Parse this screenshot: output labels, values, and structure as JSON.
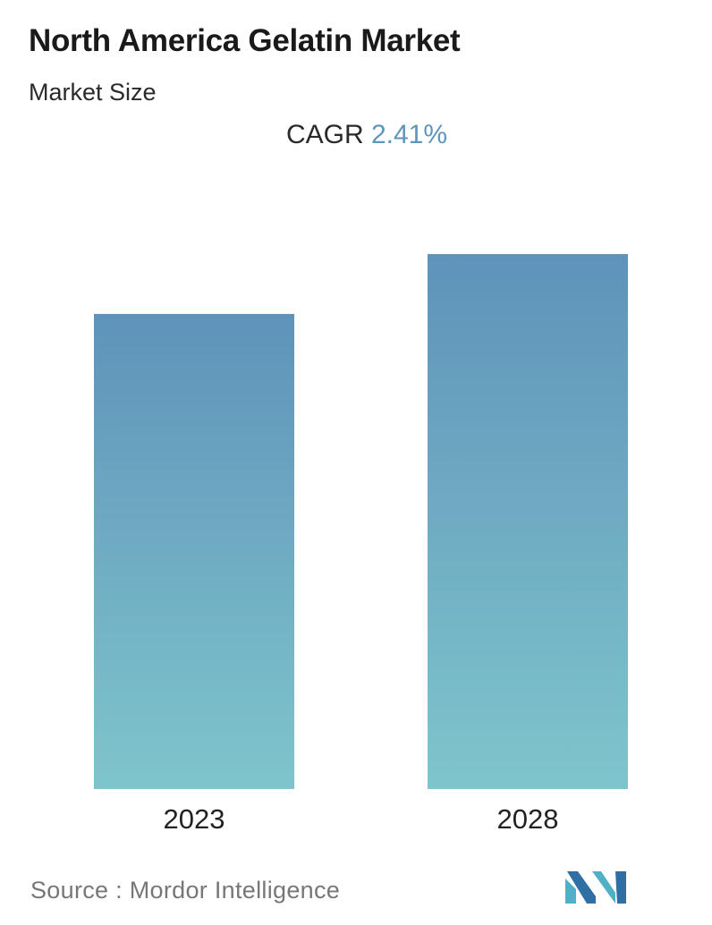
{
  "header": {
    "title": "North America Gelatin Market",
    "subtitle": "Market Size",
    "cagr_label": "CAGR",
    "cagr_value": "2.41%"
  },
  "chart_data": {
    "type": "bar",
    "categories": [
      "2023",
      "2028"
    ],
    "values": [
      1.0,
      1.126
    ],
    "value_note": "relative bar heights (no y-axis shown)",
    "grid": false,
    "legend": "none",
    "colors": {
      "bar_top": "#5f93ba",
      "bar_bottom": "#7fc5cc"
    }
  },
  "footer": {
    "source_text": "Source :  Mordor Intelligence",
    "logo_icon": "mordor-intelligence-logo-icon",
    "logo_colors": [
      "#2f6fa4",
      "#4fb0c6"
    ]
  }
}
